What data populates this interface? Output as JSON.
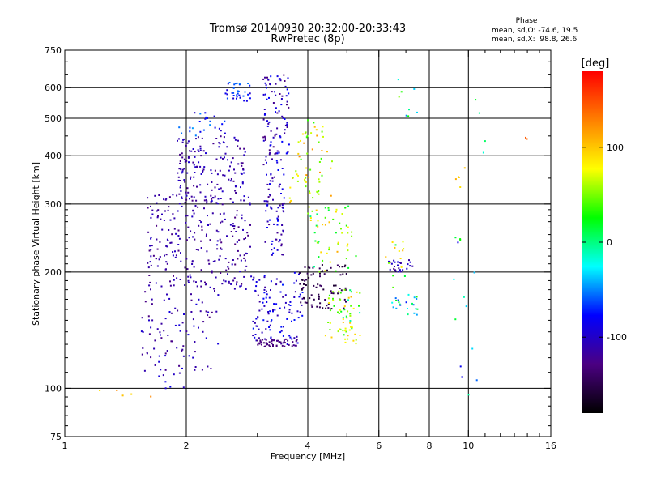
{
  "header": {
    "title_line1": "Tromsø 20140930 20:32:00-20:33:43",
    "title_line2": "RwPretec (8p)"
  },
  "phase_box": {
    "title": "Phase",
    "stat_o": "mean, sd,O: -74.6, 19.5",
    "stat_x": "mean, sd,X:  98.8, 26.6"
  },
  "colorbar": {
    "unit_label": "[deg]",
    "ticks": [
      {
        "label": "100",
        "value": 100
      },
      {
        "label": "0",
        "value": 0
      },
      {
        "label": "-100",
        "value": -100
      }
    ],
    "range": [
      -180,
      180
    ],
    "colors": [
      "#000000",
      "#4b0082",
      "#0000ff",
      "#00ffff",
      "#00ff00",
      "#ffff00",
      "#ff8000",
      "#ff0000"
    ]
  },
  "chart_data": {
    "type": "scatter",
    "title": "Tromsø 20140930 20:32:00-20:33:43",
    "subtitle": "RwPretec (8p)",
    "xlabel": "Frequency [MHz]",
    "ylabel": "Stationary phase Virtual Height [km]",
    "xscale": "log",
    "yscale": "log",
    "xlim": [
      1,
      16
    ],
    "ylim": [
      75,
      750
    ],
    "grid": true,
    "x_ticks": [
      {
        "label": "1",
        "value": 1
      },
      {
        "label": "2",
        "value": 2
      },
      {
        "label": "4",
        "value": 4
      },
      {
        "label": "6",
        "value": 6
      },
      {
        "label": "8",
        "value": 8
      },
      {
        "label": "10",
        "value": 10
      },
      {
        "label": "16",
        "value": 16
      }
    ],
    "x_grid": [
      2,
      4,
      6,
      8,
      10
    ],
    "y_ticks": [
      {
        "label": "75",
        "value": 75
      },
      {
        "label": "100",
        "value": 100
      },
      {
        "label": "200",
        "value": 200
      },
      {
        "label": "300",
        "value": 300
      },
      {
        "label": "400",
        "value": 400
      },
      {
        "label": "500",
        "value": 500
      },
      {
        "label": "600",
        "value": 600
      },
      {
        "label": "750",
        "value": 750
      }
    ],
    "y_grid": [
      100,
      200,
      300,
      400,
      500,
      600
    ],
    "color_variable": "phase [deg]",
    "clusters": [
      {
        "x": [
          1.55,
          2.4
        ],
        "y": [
          110,
          180
        ],
        "phase": -110,
        "spread": 20,
        "n": 90
      },
      {
        "x": [
          1.6,
          2.9
        ],
        "y": [
          180,
          320
        ],
        "phase": -115,
        "spread": 15,
        "n": 260
      },
      {
        "x": [
          1.9,
          2.8
        ],
        "y": [
          300,
          450
        ],
        "phase": -110,
        "spread": 15,
        "n": 160
      },
      {
        "x": [
          1.9,
          2.5
        ],
        "y": [
          450,
          520
        ],
        "phase": -75,
        "spread": 30,
        "n": 25
      },
      {
        "x": [
          2.5,
          2.9
        ],
        "y": [
          550,
          620
        ],
        "phase": -75,
        "spread": 25,
        "n": 35
      },
      {
        "x": [
          3.1,
          3.6
        ],
        "y": [
          400,
          650
        ],
        "phase": -105,
        "spread": 30,
        "n": 90
      },
      {
        "x": [
          3.1,
          3.5
        ],
        "y": [
          220,
          400
        ],
        "phase": -100,
        "spread": 25,
        "n": 80
      },
      {
        "x": [
          2.9,
          3.9
        ],
        "y": [
          130,
          200
        ],
        "phase": -95,
        "spread": 25,
        "n": 110
      },
      {
        "x": [
          3.0,
          3.8
        ],
        "y": [
          128,
          134
        ],
        "phase": -130,
        "spread": 8,
        "n": 55
      },
      {
        "x": [
          3.6,
          4.6
        ],
        "y": [
          300,
          500
        ],
        "phase": 80,
        "spread": 50,
        "n": 60
      },
      {
        "x": [
          3.8,
          5.0
        ],
        "y": [
          160,
          210
        ],
        "phase": -150,
        "spread": 12,
        "n": 80
      },
      {
        "x": [
          4.0,
          5.3
        ],
        "y": [
          200,
          300
        ],
        "phase": 50,
        "spread": 60,
        "n": 60
      },
      {
        "x": [
          4.4,
          5.4
        ],
        "y": [
          135,
          180
        ],
        "phase": 45,
        "spread": 60,
        "n": 50
      },
      {
        "x": [
          4.8,
          5.5
        ],
        "y": [
          130,
          145
        ],
        "phase": 70,
        "spread": 25,
        "n": 15
      },
      {
        "x": [
          6.3,
          7.3
        ],
        "y": [
          200,
          215
        ],
        "phase": -110,
        "spread": 20,
        "n": 25
      },
      {
        "x": [
          6.4,
          7.5
        ],
        "y": [
          155,
          175
        ],
        "phase": -20,
        "spread": 60,
        "n": 22
      },
      {
        "x": [
          6.2,
          7.0
        ],
        "y": [
          180,
          240
        ],
        "phase": 60,
        "spread": 50,
        "n": 15
      },
      {
        "x": [
          6.5,
          7.6
        ],
        "y": [
          480,
          650
        ],
        "phase": 0,
        "spread": 60,
        "n": 8
      },
      {
        "x": [
          9.2,
          11.0
        ],
        "y": [
          90,
          620
        ],
        "phase": -30,
        "spread": 60,
        "n": 18
      },
      {
        "x": [
          9.2,
          9.8
        ],
        "y": [
          330,
          390
        ],
        "phase": 100,
        "spread": 10,
        "n": 5
      },
      {
        "x": [
          1.2,
          1.8
        ],
        "y": [
          95,
          100
        ],
        "phase": 120,
        "spread": 30,
        "n": 5
      },
      {
        "x": [
          1.7,
          2.0
        ],
        "y": [
          100,
          110
        ],
        "phase": -100,
        "spread": 20,
        "n": 8
      },
      {
        "x": [
          13.5,
          14.5
        ],
        "y": [
          420,
          450
        ],
        "phase": 150,
        "spread": 10,
        "n": 2
      }
    ]
  }
}
